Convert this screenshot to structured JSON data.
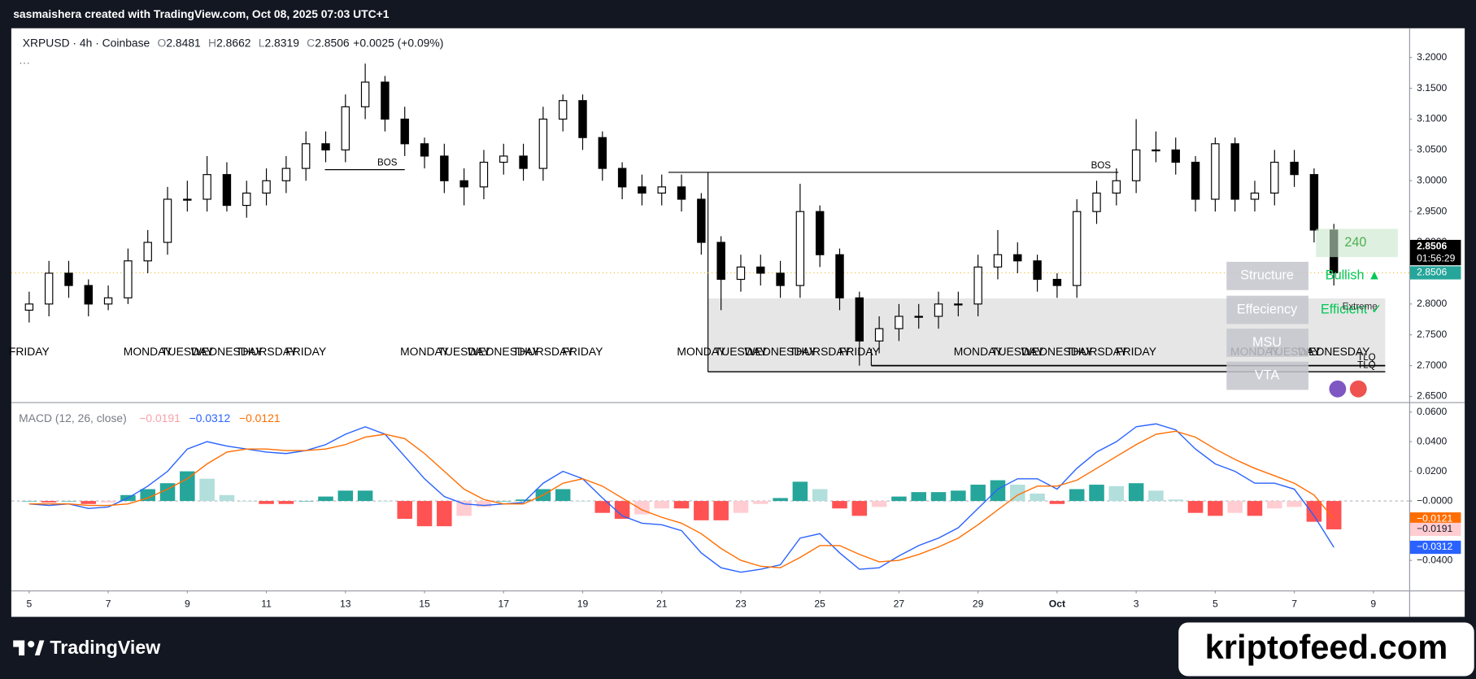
{
  "header": {
    "byline": "sasmaishera created with TradingView.com, Oct 08, 2025 07:03 UTC+1",
    "brand": "TradingView",
    "watermark": "kriptofeed.com"
  },
  "chart_data": [
    {
      "type": "candlestick",
      "title": "XRPUSD · 4h · Coinbase",
      "ohlc": [
        {
          "label": "O",
          "value": "2.8481"
        },
        {
          "label": "H",
          "value": "2.8662"
        },
        {
          "label": "L",
          "value": "2.8319"
        },
        {
          "label": "C",
          "value": "2.8506"
        }
      ],
      "change": "+0.0025 (+0.09%)",
      "x": [
        5,
        5.5,
        6,
        6.5,
        7,
        7.5,
        8,
        8.5,
        9,
        9.5,
        10,
        10.5,
        11,
        11.5,
        12,
        12.5,
        13,
        13.5,
        14,
        14.5,
        15,
        15.5,
        16,
        16.5,
        17,
        17.5,
        18,
        18.5,
        19,
        19.5,
        20,
        20.5,
        21,
        21.5,
        22,
        22.5,
        23,
        23.5,
        24,
        24.5,
        25,
        25.5,
        26,
        26.5,
        27,
        27.5,
        28,
        28.5,
        29,
        29.5,
        30,
        30.5,
        31,
        31.5,
        32,
        32.5,
        33,
        33.5,
        34,
        34.5,
        35,
        35.5,
        36,
        36.5,
        37,
        37.5,
        38
      ],
      "open": [
        2.79,
        2.8,
        2.85,
        2.83,
        2.8,
        2.81,
        2.87,
        2.9,
        2.97,
        2.97,
        3.01,
        2.96,
        2.98,
        3.0,
        3.02,
        3.06,
        3.05,
        3.12,
        3.16,
        3.1,
        3.06,
        3.04,
        3.0,
        2.99,
        3.03,
        3.04,
        3.02,
        3.1,
        3.13,
        3.07,
        3.02,
        2.99,
        2.98,
        2.99,
        2.97,
        2.9,
        2.84,
        2.86,
        2.85,
        2.83,
        2.95,
        2.88,
        2.81,
        2.74,
        2.76,
        2.78,
        2.78,
        2.8,
        2.8,
        2.86,
        2.88,
        2.87,
        2.84,
        2.83,
        2.95,
        2.98,
        3.0,
        3.05,
        3.05,
        3.03,
        2.97,
        3.06,
        2.97,
        2.98,
        3.03,
        3.01,
        2.92
      ],
      "high": [
        2.82,
        2.87,
        2.87,
        2.84,
        2.83,
        2.89,
        2.92,
        2.99,
        3.0,
        3.04,
        3.03,
        3.0,
        3.02,
        3.04,
        3.08,
        3.08,
        3.14,
        3.19,
        3.17,
        3.12,
        3.07,
        3.06,
        3.02,
        3.05,
        3.06,
        3.06,
        3.12,
        3.14,
        3.14,
        3.08,
        3.03,
        3.01,
        3.01,
        3.01,
        2.98,
        2.91,
        2.88,
        2.88,
        2.87,
        2.995,
        2.96,
        2.89,
        2.82,
        2.78,
        2.8,
        2.8,
        2.82,
        2.82,
        2.88,
        2.92,
        2.9,
        2.88,
        2.85,
        2.97,
        3.0,
        3.02,
        3.1,
        3.08,
        3.07,
        3.04,
        3.07,
        3.07,
        3.0,
        3.05,
        3.05,
        3.02,
        2.93
      ],
      "low": [
        2.77,
        2.78,
        2.81,
        2.78,
        2.79,
        2.8,
        2.85,
        2.88,
        2.95,
        2.95,
        2.95,
        2.94,
        2.96,
        2.98,
        3.0,
        3.03,
        3.03,
        3.1,
        3.08,
        3.04,
        3.02,
        2.98,
        2.96,
        2.97,
        3.01,
        3.0,
        3.0,
        3.08,
        3.05,
        3.0,
        2.97,
        2.96,
        2.96,
        2.95,
        2.88,
        2.79,
        2.82,
        2.83,
        2.81,
        2.81,
        2.86,
        2.79,
        2.7,
        2.72,
        2.74,
        2.76,
        2.76,
        2.78,
        2.78,
        2.84,
        2.85,
        2.82,
        2.81,
        2.81,
        2.93,
        2.96,
        2.98,
        3.03,
        3.01,
        2.95,
        2.95,
        2.95,
        2.95,
        2.96,
        2.99,
        2.9,
        2.83
      ],
      "close": [
        2.8,
        2.85,
        2.83,
        2.8,
        2.81,
        2.87,
        2.9,
        2.97,
        2.97,
        3.01,
        2.96,
        2.98,
        3.0,
        3.02,
        3.06,
        3.05,
        3.12,
        3.16,
        3.1,
        3.06,
        3.04,
        3.0,
        2.99,
        3.03,
        3.04,
        3.02,
        3.1,
        3.13,
        3.07,
        3.02,
        2.99,
        2.98,
        2.99,
        2.97,
        2.9,
        2.84,
        2.86,
        2.85,
        2.83,
        2.95,
        2.88,
        2.81,
        2.74,
        2.76,
        2.78,
        2.78,
        2.8,
        2.8,
        2.86,
        2.88,
        2.87,
        2.84,
        2.83,
        2.95,
        2.98,
        3.0,
        3.05,
        3.05,
        3.03,
        2.97,
        3.06,
        2.97,
        2.98,
        3.03,
        3.01,
        2.92,
        2.8506
      ],
      "up_color": "#ffffff",
      "down_color": "#000000",
      "wick_color": "#000000",
      "xlim": [
        4.548,
        39.905
      ],
      "ylim": [
        2.6408,
        3.2474
      ],
      "yticks": [
        {
          "value": 3.2,
          "label": "3.2000"
        },
        {
          "value": 3.15,
          "label": "3.1500"
        },
        {
          "value": 3.1,
          "label": "3.1000"
        },
        {
          "value": 3.05,
          "label": "3.0500"
        },
        {
          "value": 3.0,
          "label": "3.0000"
        },
        {
          "value": 2.95,
          "label": "2.9500"
        },
        {
          "value": 2.9,
          "label": "2.9000"
        },
        {
          "value": 2.85,
          "label": "2.8500"
        },
        {
          "value": 2.8,
          "label": "2.8000"
        },
        {
          "value": 2.75,
          "label": "2.7500"
        },
        {
          "value": 2.7,
          "label": "2.7000"
        },
        {
          "value": 2.65,
          "label": "2.6500"
        }
      ],
      "grid": false,
      "last_price": 2.8506,
      "countdown": "01:56:29",
      "last_price_color": "#26a69a",
      "weekday_labels": {
        "x": [
          5,
          8,
          9,
          10,
          11,
          12,
          15,
          16,
          17,
          18,
          19,
          22,
          23,
          24,
          25,
          26,
          29,
          30,
          31,
          32,
          33,
          36,
          37,
          38
        ],
        "labels": [
          "FRIDAY",
          "MONDAY",
          "TUESDAY",
          "WEDNESDAY",
          "THURSDAY",
          "FRIDAY",
          "MONDAY",
          "TUESDAY",
          "WEDNESDAY",
          "THURSDAY",
          "FRIDAY",
          "MONDAY",
          "TUESDAY",
          "WEDNESDAY",
          "THURSDAY",
          "FRIDAY",
          "MONDAY",
          "TUESDAY",
          "WEDNESDAY",
          "THURSDAY",
          "FRIDAY",
          "MONDAY",
          "TUESDAY",
          "WEDNESDAY"
        ]
      },
      "bos": [
        {
          "text": "BOS",
          "price": 3.018,
          "x": [
            12.48,
            14.5
          ]
        },
        {
          "text": "BOS",
          "price": 3.0136,
          "x": [
            21.17,
            32.55
          ]
        }
      ],
      "zone": {
        "x": [
          22.17,
          39.3
        ],
        "price": [
          2.69,
          2.809
        ]
      },
      "tlq_line": {
        "x": [
          26.3,
          39.3
        ],
        "price": 2.7
      },
      "panel": {
        "rows": [
          "Structure",
          "Effeciency",
          "MSU",
          "VTA"
        ],
        "timeframe": "240",
        "structure": "Bullish ▲",
        "efficiency": "Efficient ✓",
        "extreme": "Extreme",
        "tlq": [
          "TLQ",
          "TLQ"
        ]
      }
    },
    {
      "type": "macd",
      "title": "MACD (12, 26, close)",
      "xlim": [
        4.548,
        39.905
      ],
      "ylim": [
        -0.0603,
        0.066
      ],
      "xticks": [
        5,
        7,
        9,
        11,
        13,
        15,
        17,
        19,
        21,
        23,
        25,
        27,
        29,
        {
          "value": 31,
          "label": "Oct"
        },
        {
          "value": 33,
          "label": "3"
        },
        {
          "value": 35,
          "label": "5"
        },
        {
          "value": 37,
          "label": "7"
        },
        {
          "value": 39,
          "label": "9"
        }
      ],
      "yticks": [
        {
          "value": 0.06,
          "label": "0.0600"
        },
        {
          "value": 0.04,
          "label": "0.0400"
        },
        {
          "value": 0.02,
          "label": "0.0200"
        },
        {
          "value": 0,
          "label": "−0.0000"
        },
        {
          "value": -0.04,
          "label": "−0.0400"
        }
      ],
      "histogram": {
        "values": [
          0,
          -0.001,
          0,
          -0.002,
          -0.001,
          0.004,
          0.008,
          0.012,
          0.02,
          0.015,
          0.004,
          0,
          -0.002,
          -0.002,
          0,
          0.003,
          0.007,
          0.007,
          0,
          -0.012,
          -0.017,
          -0.017,
          -0.01,
          -0.004,
          0,
          0.001,
          0.008,
          0.008,
          0,
          -0.008,
          -0.012,
          -0.009,
          -0.005,
          -0.005,
          -0.013,
          -0.013,
          -0.008,
          -0.002,
          0.002,
          0.013,
          0.008,
          -0.005,
          -0.01,
          -0.004,
          0.003,
          0.006,
          0.006,
          0.007,
          0.011,
          0.014,
          0.011,
          0.005,
          -0.002,
          0.008,
          0.011,
          0.01,
          0.012,
          0.007,
          0.001,
          -0.008,
          -0.01,
          -0.008,
          -0.01,
          -0.005,
          -0.004,
          -0.014,
          -0.0191
        ],
        "last_label": "−0.0191",
        "color": "#f7a1a8",
        "colors": {
          "up_rising": "#26a69a",
          "up_falling": "#b2dfdb",
          "down_falling": "#ff5252",
          "down_rising": "#ffcdd2"
        }
      },
      "series": [
        {
          "color": "#2962ff",
          "last_label": "−0.0312",
          "values": [
            -0.002,
            -0.003,
            -0.002,
            -0.005,
            -0.004,
            0.002,
            0.01,
            0.02,
            0.035,
            0.04,
            0.037,
            0.035,
            0.033,
            0.032,
            0.034,
            0.038,
            0.045,
            0.05,
            0.045,
            0.03,
            0.015,
            0.003,
            -0.002,
            -0.003,
            -0.002,
            -0.001,
            0.012,
            0.02,
            0.015,
            0.002,
            -0.01,
            -0.015,
            -0.016,
            -0.02,
            -0.035,
            -0.045,
            -0.048,
            -0.046,
            -0.043,
            -0.025,
            -0.022,
            -0.035,
            -0.046,
            -0.045,
            -0.037,
            -0.03,
            -0.025,
            -0.018,
            -0.005,
            0.008,
            0.015,
            0.015,
            0.008,
            0.022,
            0.033,
            0.04,
            0.05,
            0.052,
            0.048,
            0.035,
            0.025,
            0.02,
            0.012,
            0.012,
            0.008,
            -0.01,
            -0.0312
          ]
        },
        {
          "color": "#ff6d00",
          "last_label": "−0.0121",
          "values": [
            -0.002,
            -0.002,
            -0.002,
            -0.003,
            -0.003,
            -0.002,
            0.002,
            0.008,
            0.015,
            0.025,
            0.033,
            0.035,
            0.035,
            0.034,
            0.034,
            0.035,
            0.038,
            0.043,
            0.045,
            0.042,
            0.032,
            0.02,
            0.008,
            0.001,
            -0.002,
            -0.002,
            0.004,
            0.012,
            0.015,
            0.01,
            0.002,
            -0.006,
            -0.011,
            -0.015,
            -0.022,
            -0.032,
            -0.04,
            -0.044,
            -0.045,
            -0.038,
            -0.03,
            -0.03,
            -0.036,
            -0.041,
            -0.04,
            -0.036,
            -0.031,
            -0.025,
            -0.016,
            -0.006,
            0.004,
            0.01,
            0.01,
            0.014,
            0.022,
            0.03,
            0.038,
            0.045,
            0.047,
            0.043,
            0.035,
            0.028,
            0.022,
            0.017,
            0.012,
            0.004,
            -0.0121
          ]
        }
      ]
    }
  ]
}
